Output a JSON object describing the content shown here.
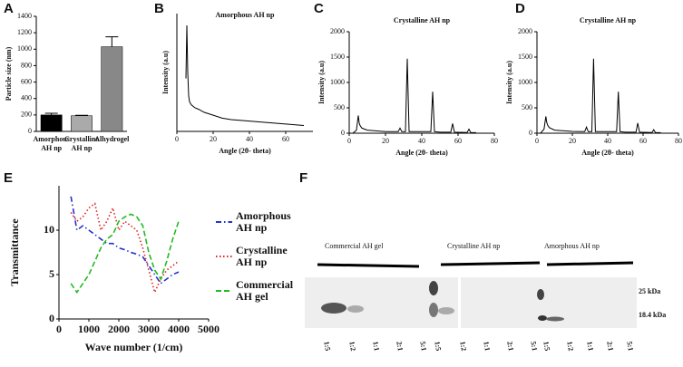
{
  "chart_data": [
    {
      "type": "bar",
      "panel": "A",
      "ylabel": "Particle size (nm)",
      "categories": [
        "Amorphous AH np",
        "Crystalline AH np",
        "Alhydrogel"
      ],
      "values": [
        200,
        190,
        1030
      ],
      "errors": [
        20,
        5,
        120
      ],
      "colors": [
        "#000000",
        "#aaaaaa",
        "#888888"
      ],
      "ylim": [
        0,
        1400
      ],
      "yticks": [
        0,
        200,
        400,
        600,
        800,
        1000,
        1200,
        1400
      ]
    },
    {
      "type": "line",
      "panel": "B",
      "title": "Amorphous AH np",
      "xlabel": "Angle (2θ- theta)",
      "ylabel": "Intensity (a.u)",
      "x": [
        5,
        5.5,
        6,
        6.5,
        7,
        8,
        10,
        12,
        15,
        20,
        25,
        30,
        40,
        50,
        60,
        70
      ],
      "values": [
        180,
        360,
        200,
        120,
        100,
        90,
        80,
        75,
        65,
        55,
        45,
        40,
        35,
        30,
        25,
        20
      ],
      "color": "#000000",
      "xlim": [
        0,
        75
      ],
      "xticks": [
        0,
        20,
        40,
        60
      ],
      "ylim": [
        0,
        400
      ]
    },
    {
      "type": "line",
      "panel": "C",
      "title": "Crystalline AH np",
      "xlabel": "Angle (2θ- theta)",
      "ylabel": "Intensity (a.u)",
      "x": [
        2,
        4,
        5,
        5.5,
        6,
        7,
        10,
        20,
        27,
        28,
        29,
        31,
        32,
        33,
        35,
        45,
        46,
        47,
        50,
        56,
        57,
        58,
        65,
        66,
        67,
        70
      ],
      "values": [
        0,
        60,
        350,
        200,
        150,
        100,
        60,
        30,
        30,
        100,
        30,
        30,
        1470,
        30,
        30,
        30,
        820,
        30,
        20,
        20,
        190,
        20,
        15,
        80,
        15,
        10
      ],
      "color": "#000000",
      "xlim": [
        0,
        80
      ],
      "xticks": [
        0,
        20,
        40,
        60,
        80
      ],
      "ylim": [
        0,
        2000
      ],
      "yticks": [
        0,
        500,
        1000,
        1500,
        2000
      ]
    },
    {
      "type": "line",
      "panel": "D",
      "title": "Crystalline AH np",
      "xlabel": "Angle (2θ- theta)",
      "ylabel": "Intensity (a.u)",
      "x": [
        2,
        4,
        5,
        5.5,
        6,
        7,
        10,
        20,
        27,
        28,
        29,
        31,
        32,
        33,
        35,
        45,
        46,
        47,
        50,
        56,
        57,
        58,
        65,
        66,
        67,
        70
      ],
      "values": [
        0,
        80,
        330,
        220,
        160,
        110,
        60,
        35,
        30,
        120,
        30,
        30,
        1470,
        30,
        30,
        30,
        820,
        30,
        20,
        20,
        200,
        20,
        15,
        70,
        15,
        10
      ],
      "color": "#000000",
      "xlim": [
        0,
        80
      ],
      "xticks": [
        0,
        20,
        40,
        60,
        80
      ],
      "ylim": [
        0,
        2000
      ],
      "yticks": [
        0,
        500,
        1000,
        1500,
        2000
      ]
    },
    {
      "type": "line",
      "panel": "E",
      "xlabel": "Wave number (1/cm)",
      "ylabel": "Transmittance",
      "x": [
        400,
        600,
        800,
        1000,
        1200,
        1400,
        1600,
        1800,
        2000,
        2200,
        2400,
        2600,
        2800,
        3000,
        3200,
        3400,
        3600,
        3800,
        4000
      ],
      "series": [
        {
          "name": "Amorphous AH np",
          "color": "#2233cc",
          "values": [
            13.8,
            10,
            10.5,
            10,
            9.5,
            9,
            8.5,
            8.5,
            8,
            7.8,
            7.5,
            7.3,
            7,
            6,
            5,
            4,
            4.5,
            5,
            5.3
          ]
        },
        {
          "name": "Crystalline AH np",
          "color": "#dd2222",
          "values": [
            12,
            11,
            11.5,
            12.5,
            13,
            10,
            11,
            12.5,
            10,
            11,
            10.5,
            10,
            8,
            5.5,
            3,
            4.5,
            5.5,
            6,
            6.5
          ]
        },
        {
          "name": "Commercial AH gel",
          "color": "#22bb22",
          "values": [
            4,
            3,
            4,
            5,
            6.5,
            8,
            9,
            9.5,
            11,
            11.5,
            11.8,
            11.5,
            10.5,
            7.5,
            5.5,
            4.5,
            6.5,
            9,
            11
          ]
        }
      ],
      "xlim": [
        0,
        5000
      ],
      "xticks": [
        0,
        1000,
        2000,
        3000,
        4000,
        5000
      ],
      "ylim": [
        0,
        15
      ],
      "yticks": [
        0,
        5,
        10
      ]
    }
  ],
  "gel": {
    "panel": "F",
    "groups": [
      {
        "label": "Commercial AH gel",
        "lanes": [
          "1:5",
          "1:2",
          "1:1",
          "2:1",
          "5:1"
        ]
      },
      {
        "label": "Crystalline AH np",
        "lanes": [
          "1:5",
          "1:2",
          "1:1",
          "2:1",
          "5:1"
        ]
      },
      {
        "label": "Amorphous AH np",
        "lanes": [
          "1:5",
          "1:2",
          "1:1",
          "2:1",
          "5:1"
        ]
      }
    ],
    "markers": [
      "25 kDa",
      "18.4 kDa"
    ]
  }
}
